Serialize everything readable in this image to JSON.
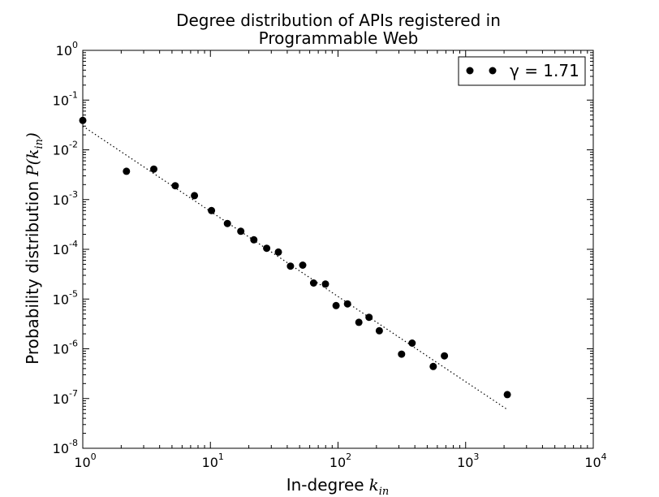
{
  "chart_data": {
    "type": "scatter",
    "title_line1": "Degree distribution of APIs registered in",
    "title_line2": "Programmable Web",
    "xlabel": "In-degree",
    "xlabel_math_base": "k",
    "xlabel_math_sub": "in",
    "ylabel": "Probability distribution",
    "ylabel_math_pre": "P(k",
    "ylabel_math_sub": "in",
    "ylabel_math_post": ")",
    "xscale": "log",
    "yscale": "log",
    "xlim": [
      1,
      10000
    ],
    "ylim": [
      1e-08,
      1
    ],
    "x_ticks": [
      {
        "value": 1,
        "base": "10",
        "exp": "0"
      },
      {
        "value": 10,
        "base": "10",
        "exp": "1"
      },
      {
        "value": 100,
        "base": "10",
        "exp": "2"
      },
      {
        "value": 1000,
        "base": "10",
        "exp": "3"
      },
      {
        "value": 10000,
        "base": "10",
        "exp": "4"
      }
    ],
    "y_ticks": [
      {
        "value": 1,
        "base": "10",
        "exp": "0"
      },
      {
        "value": 0.1,
        "base": "10",
        "exp": "-1"
      },
      {
        "value": 0.01,
        "base": "10",
        "exp": "-2"
      },
      {
        "value": 0.001,
        "base": "10",
        "exp": "-3"
      },
      {
        "value": 0.0001,
        "base": "10",
        "exp": "-4"
      },
      {
        "value": 1e-05,
        "base": "10",
        "exp": "-5"
      },
      {
        "value": 1e-06,
        "base": "10",
        "exp": "-6"
      },
      {
        "value": 1e-07,
        "base": "10",
        "exp": "-7"
      },
      {
        "value": 1e-08,
        "base": "10",
        "exp": "-8"
      }
    ],
    "grid": false,
    "legend_position": "top-right",
    "series": [
      {
        "name": "γ = 1.71",
        "style": "markers",
        "color": "#000000",
        "x": [
          1.0,
          2.2,
          3.6,
          5.3,
          7.5,
          10.2,
          13.6,
          17.3,
          21.9,
          27.6,
          34.1,
          42.4,
          52.9,
          64.4,
          79.7,
          96.5,
          118.7,
          145.6,
          175.0,
          210.7,
          314.7,
          380.6,
          557.4,
          681.4,
          2120.0
        ],
        "y": [
          0.039,
          0.0037,
          0.0041,
          0.0019,
          0.0012,
          0.0006,
          0.00033,
          0.00023,
          0.000155,
          0.000105,
          8.8e-05,
          4.6e-05,
          4.8e-05,
          2.1e-05,
          2e-05,
          7.4e-06,
          8e-06,
          3.4e-06,
          4.3e-06,
          2.3e-06,
          7.8e-07,
          1.3e-06,
          4.4e-07,
          7.2e-07,
          1.2e-07
        ]
      },
      {
        "style": "dotted-line",
        "color": "#000000",
        "x": [
          1.0,
          2120.0
        ],
        "y": [
          0.03,
          6e-08
        ]
      }
    ]
  }
}
